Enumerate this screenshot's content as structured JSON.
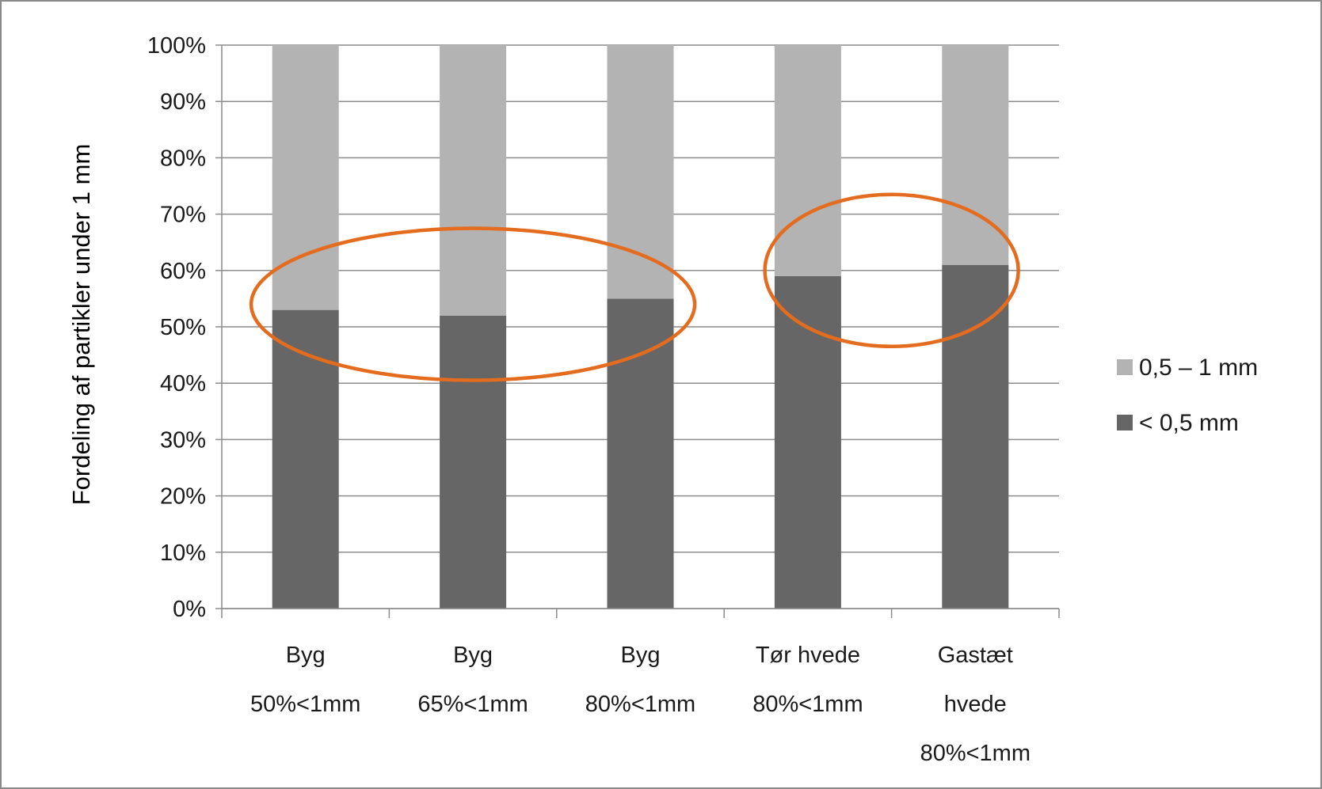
{
  "chart_data": {
    "type": "bar",
    "stacked": true,
    "categories": [
      [
        "Byg",
        "50%<1mm"
      ],
      [
        "Byg",
        "65%<1mm"
      ],
      [
        "Byg",
        "80%<1mm"
      ],
      [
        "Tør hvede",
        "80%<1mm"
      ],
      [
        "Gastæt",
        "hvede",
        "80%<1mm"
      ]
    ],
    "series": [
      {
        "name": "< 0,5 mm",
        "values": [
          53,
          52,
          55,
          59,
          61
        ],
        "color": "#666666"
      },
      {
        "name": "0,5 – 1 mm",
        "values": [
          47,
          48,
          45,
          41,
          39
        ],
        "color": "#b3b3b3"
      }
    ],
    "ylabel": "Fordeling af partikler under 1 mm",
    "xlabel": "",
    "ylim": [
      0,
      100
    ],
    "yticks": [
      "0%",
      "10%",
      "20%",
      "30%",
      "40%",
      "50%",
      "60%",
      "70%",
      "80%",
      "90%",
      "100%"
    ],
    "grid": true,
    "legend_position": "right",
    "legend_order": [
      "0,5 – 1 mm",
      "< 0,5 mm"
    ],
    "annotations": [
      {
        "shape": "ellipse",
        "color": "#e46c1e",
        "encloses_categories": [
          0,
          2
        ],
        "center_y": 54
      },
      {
        "shape": "ellipse",
        "color": "#e46c1e",
        "encloses_categories": [
          3,
          4
        ],
        "center_y": 60
      }
    ]
  }
}
